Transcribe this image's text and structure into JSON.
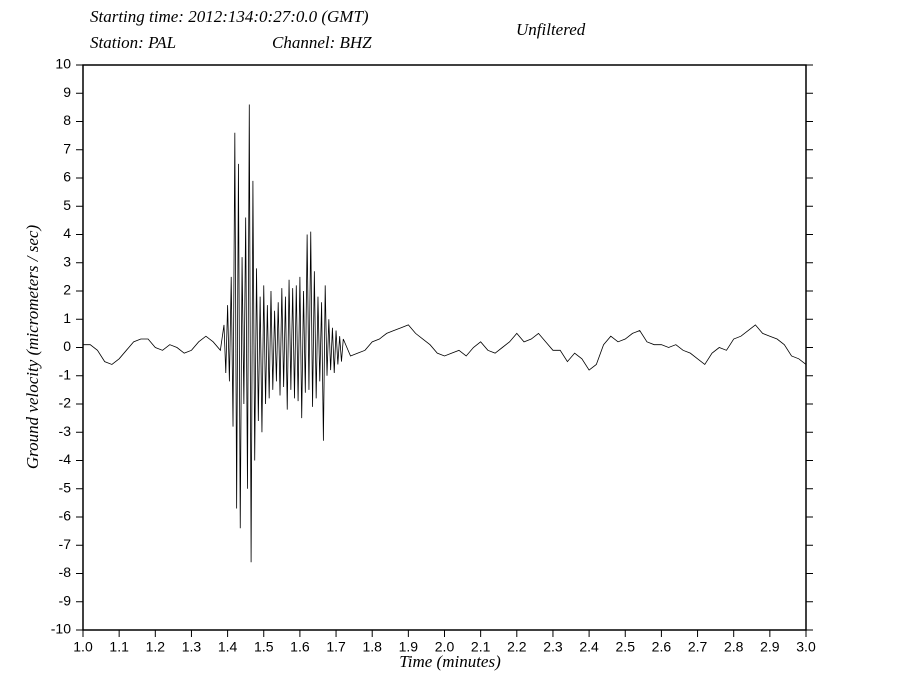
{
  "chart_data": {
    "type": "line",
    "title": "Starting time: 2012:134:0:27:0.0 (GMT)",
    "station": "Station: PAL",
    "channel": "Channel: BHZ",
    "filter": "Unfiltered",
    "xlabel": "Time (minutes)",
    "ylabel": "Ground velocity (micrometers / sec)",
    "color": "#000000",
    "xlim": [
      1,
      3
    ],
    "ylim": [
      -10,
      10
    ],
    "xticks": [
      {
        "value": 1,
        "label": "1.0"
      },
      1.1,
      1.2,
      1.3,
      1.4,
      1.5,
      1.6,
      1.7,
      1.8,
      1.9,
      {
        "value": 2,
        "label": "2.0"
      },
      2.1,
      2.2,
      2.3,
      2.4,
      2.5,
      2.6,
      2.7,
      2.8,
      2.9,
      {
        "value": 3,
        "label": "3.0"
      }
    ],
    "yticks": [
      -10,
      -9,
      -8,
      -7,
      -6,
      -5,
      -4,
      -3,
      -2,
      -1,
      0,
      1,
      2,
      3,
      4,
      5,
      6,
      7,
      8,
      9,
      10
    ],
    "x": [
      1,
      1.02,
      1.04,
      1.06,
      1.08,
      1.1,
      1.12,
      1.14,
      1.16,
      1.18,
      1.2,
      1.22,
      1.24,
      1.26,
      1.28,
      1.3,
      1.32,
      1.34,
      1.36,
      1.38,
      1.39,
      1.395,
      1.4,
      1.405,
      1.41,
      1.415,
      1.42,
      1.425,
      1.43,
      1.435,
      1.44,
      1.445,
      1.45,
      1.455,
      1.46,
      1.465,
      1.47,
      1.475,
      1.48,
      1.485,
      1.49,
      1.495,
      1.5,
      1.505,
      1.51,
      1.515,
      1.52,
      1.525,
      1.53,
      1.535,
      1.54,
      1.545,
      1.55,
      1.555,
      1.56,
      1.565,
      1.57,
      1.575,
      1.58,
      1.585,
      1.59,
      1.595,
      1.6,
      1.605,
      1.61,
      1.615,
      1.62,
      1.625,
      1.63,
      1.635,
      1.64,
      1.645,
      1.65,
      1.655,
      1.66,
      1.665,
      1.67,
      1.675,
      1.68,
      1.685,
      1.69,
      1.695,
      1.7,
      1.705,
      1.71,
      1.715,
      1.72,
      1.74,
      1.76,
      1.78,
      1.8,
      1.82,
      1.84,
      1.86,
      1.88,
      1.9,
      1.92,
      1.94,
      1.96,
      1.98,
      2,
      2.02,
      2.04,
      2.06,
      2.08,
      2.1,
      2.12,
      2.14,
      2.16,
      2.18,
      2.2,
      2.22,
      2.24,
      2.26,
      2.28,
      2.3,
      2.32,
      2.34,
      2.36,
      2.38,
      2.4,
      2.42,
      2.44,
      2.46,
      2.48,
      2.5,
      2.52,
      2.54,
      2.56,
      2.58,
      2.6,
      2.62,
      2.64,
      2.66,
      2.68,
      2.7,
      2.72,
      2.74,
      2.76,
      2.78,
      2.8,
      2.82,
      2.84,
      2.86,
      2.88,
      2.9,
      2.92,
      2.94,
      2.96,
      2.98,
      3
    ],
    "values": [
      0.1,
      0.1,
      -0.1,
      -0.5,
      -0.6,
      -0.4,
      -0.1,
      0.2,
      0.3,
      0.3,
      0.0,
      -0.1,
      0.1,
      0.0,
      -0.2,
      -0.1,
      0.2,
      0.4,
      0.2,
      -0.1,
      0.8,
      -0.9,
      1.5,
      -1.2,
      2.5,
      -2.8,
      7.6,
      -5.7,
      6.5,
      -6.4,
      3.2,
      -2.0,
      4.6,
      -5.0,
      8.6,
      -7.6,
      5.9,
      -4.0,
      2.8,
      -2.6,
      1.8,
      -3.0,
      2.2,
      -2.0,
      1.5,
      -1.8,
      2.0,
      -1.5,
      1.3,
      -1.2,
      1.6,
      -1.7,
      2.1,
      -1.4,
      1.8,
      -2.2,
      2.4,
      -1.5,
      2.1,
      -1.8,
      2.2,
      -1.9,
      2.5,
      -2.5,
      2.0,
      -1.6,
      4.0,
      -1.5,
      4.1,
      -2.1,
      2.7,
      -1.8,
      1.8,
      -1.2,
      1.6,
      -3.3,
      2.2,
      -1.0,
      1.0,
      -0.8,
      0.7,
      -0.9,
      0.6,
      -0.6,
      0.4,
      -0.5,
      0.3,
      -0.3,
      -0.2,
      -0.1,
      0.2,
      0.3,
      0.5,
      0.6,
      0.7,
      0.8,
      0.5,
      0.3,
      0.1,
      -0.2,
      -0.3,
      -0.2,
      -0.1,
      -0.3,
      0.0,
      0.2,
      -0.1,
      -0.2,
      0.0,
      0.2,
      0.5,
      0.2,
      0.3,
      0.5,
      0.2,
      -0.1,
      -0.1,
      -0.5,
      -0.2,
      -0.4,
      -0.8,
      -0.6,
      0.1,
      0.4,
      0.2,
      0.3,
      0.5,
      0.6,
      0.2,
      0.1,
      0.1,
      0.0,
      0.1,
      -0.1,
      -0.2,
      -0.4,
      -0.6,
      -0.2,
      0.0,
      -0.1,
      0.3,
      0.4,
      0.6,
      0.8,
      0.5,
      0.4,
      0.3,
      0.1,
      -0.3,
      -0.4,
      -0.6
    ]
  }
}
